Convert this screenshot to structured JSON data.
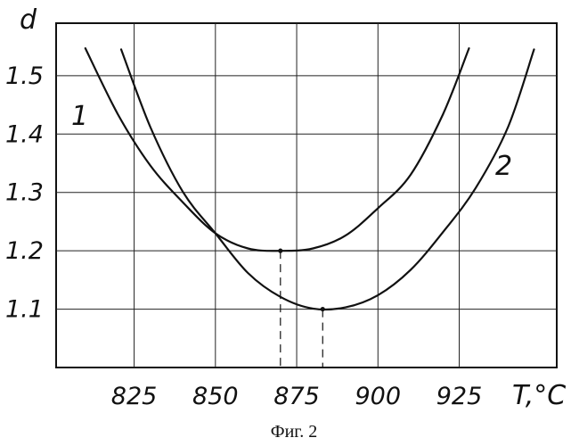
{
  "chart_data": {
    "type": "line",
    "ylabel": "d",
    "xlabel": "T,°C",
    "caption": "Фиг. 2",
    "x_tick_labels": [
      "825",
      "850",
      "875",
      "900",
      "925"
    ],
    "y_tick_labels": [
      "1.5",
      "1.4",
      "1.3",
      "1.2",
      "1.1"
    ],
    "x_ticks": [
      825,
      850,
      875,
      900,
      925
    ],
    "y_ticks": [
      1.5,
      1.4,
      1.3,
      1.2,
      1.1
    ],
    "xlim": [
      801,
      955
    ],
    "ylim": [
      1.0,
      1.59
    ],
    "grid": true,
    "series": [
      {
        "name": "1",
        "x": [
          810,
          820,
          830,
          840,
          850,
          860,
          870,
          880,
          890,
          900,
          910,
          920,
          928
        ],
        "y": [
          1.547,
          1.434,
          1.346,
          1.283,
          1.23,
          1.204,
          1.2,
          1.204,
          1.226,
          1.273,
          1.33,
          1.434,
          1.547
        ],
        "minimum": {
          "x": 870,
          "y": 1.2
        }
      },
      {
        "name": "2",
        "x": [
          821,
          830,
          840,
          850,
          860,
          870,
          880,
          890,
          900,
          910,
          920,
          930,
          940,
          948
        ],
        "y": [
          1.545,
          1.412,
          1.301,
          1.23,
          1.162,
          1.121,
          1.101,
          1.103,
          1.124,
          1.167,
          1.232,
          1.307,
          1.412,
          1.545
        ],
        "minimum": {
          "x": 883,
          "y": 1.1
        }
      }
    ]
  }
}
